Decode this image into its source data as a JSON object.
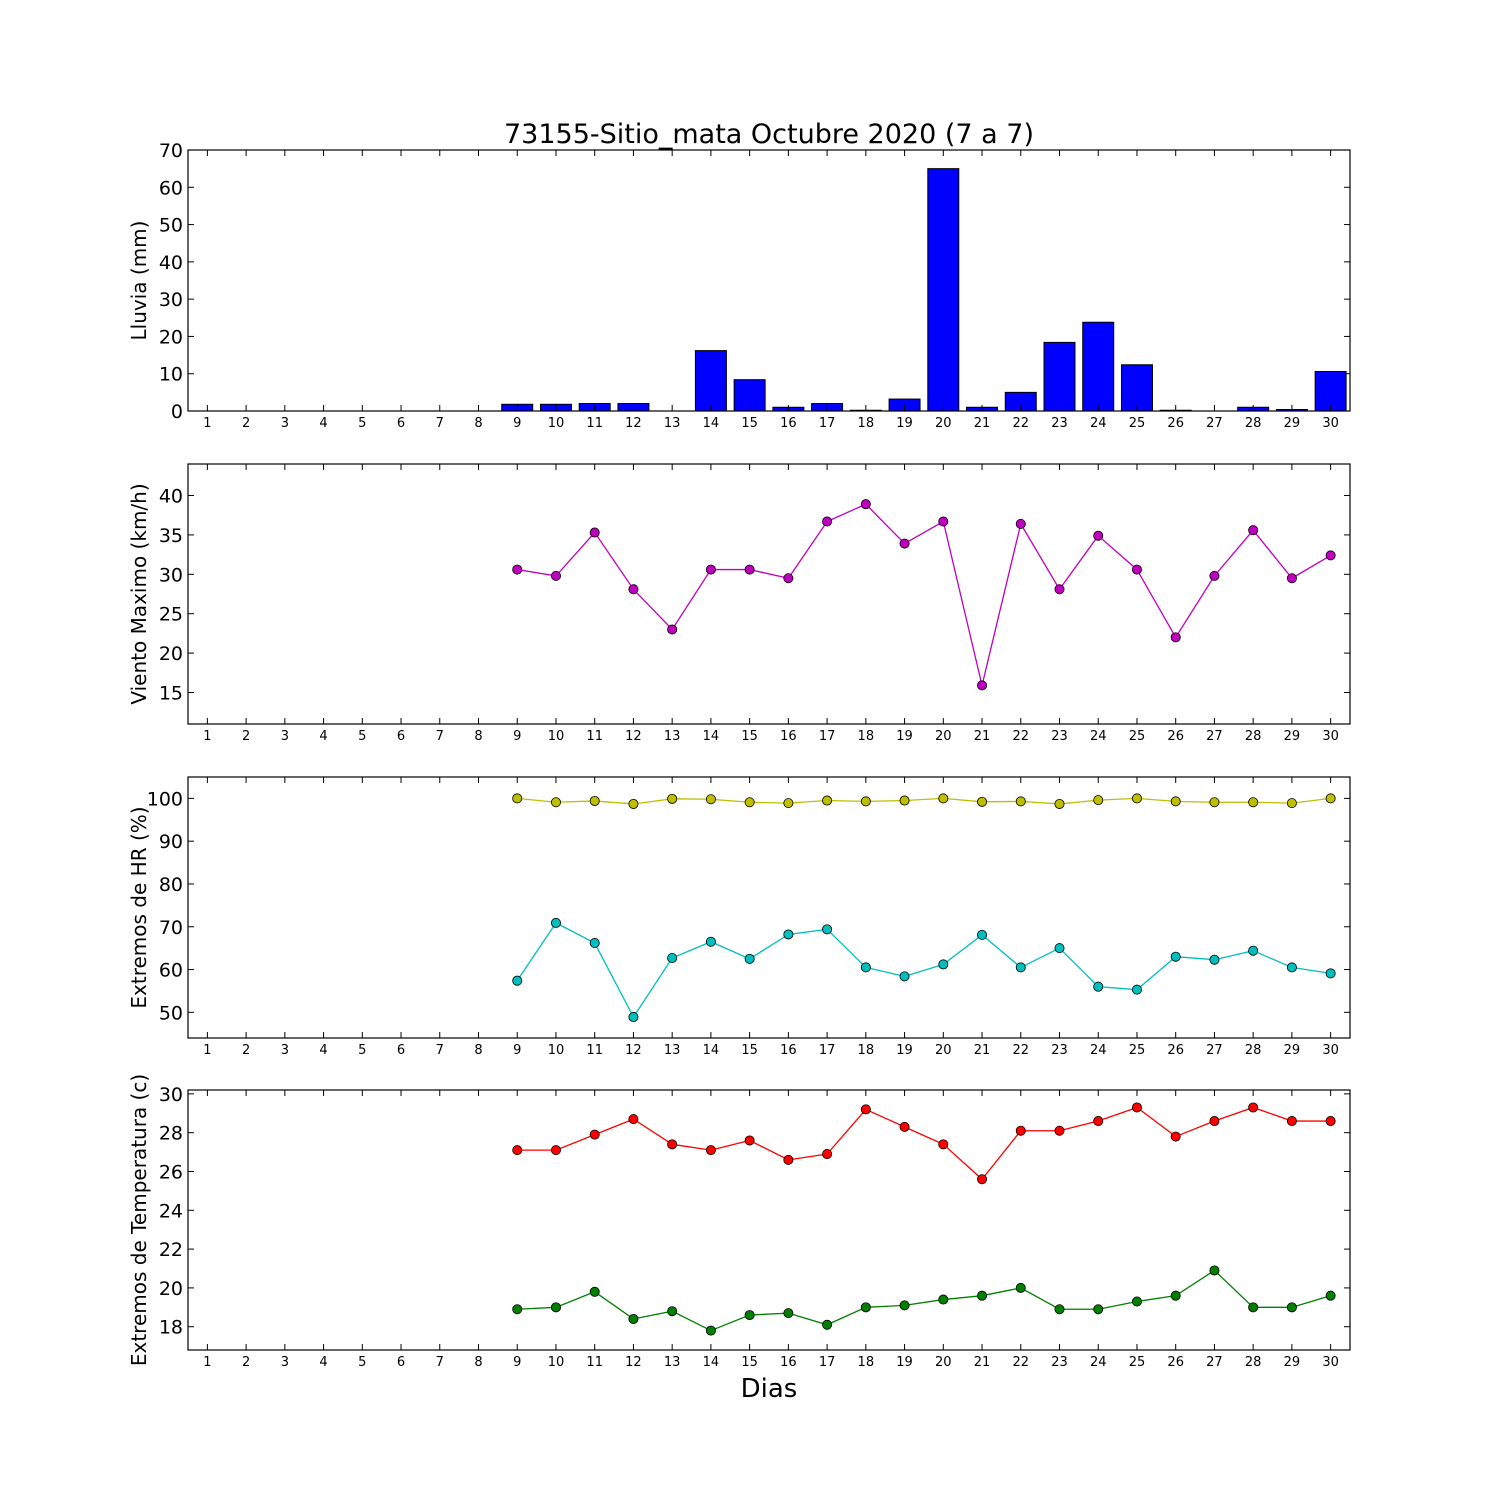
{
  "title": "73155-Sitio_mata Octubre 2020  (7 a 7)",
  "xlabel": "Dias",
  "days": [
    1,
    2,
    3,
    4,
    5,
    6,
    7,
    8,
    9,
    10,
    11,
    12,
    13,
    14,
    15,
    16,
    17,
    18,
    19,
    20,
    21,
    22,
    23,
    24,
    25,
    26,
    27,
    28,
    29,
    30
  ],
  "chart_data": [
    {
      "type": "bar",
      "ylabel": "Lluvia (mm)",
      "ylim": [
        0,
        70
      ],
      "yticks": [
        0,
        10,
        20,
        30,
        40,
        50,
        60,
        70
      ],
      "xlim": [
        0.5,
        30.5
      ],
      "color": "#0000ff",
      "categories": [
        9,
        10,
        11,
        12,
        13,
        14,
        15,
        16,
        17,
        18,
        19,
        20,
        21,
        22,
        23,
        24,
        25,
        26,
        27,
        28,
        29,
        30
      ],
      "values": [
        1.8,
        1.8,
        2.0,
        2.0,
        0,
        16.2,
        8.4,
        1.0,
        2.0,
        0.2,
        3.2,
        65.0,
        1.0,
        5.0,
        18.4,
        23.8,
        12.4,
        0.2,
        0,
        1.0,
        0.4,
        10.6
      ]
    },
    {
      "type": "line",
      "ylabel": "Viento Maximo (km/h)",
      "ylim": [
        11,
        44
      ],
      "yticks": [
        15,
        20,
        25,
        30,
        35,
        40
      ],
      "xlim": [
        0.5,
        30.5
      ],
      "series": [
        {
          "color": "#bf00bf",
          "x": [
            9,
            10,
            11,
            12,
            13,
            14,
            15,
            16,
            17,
            18,
            19,
            20,
            21,
            22,
            23,
            24,
            25,
            26,
            27,
            28,
            29,
            30
          ],
          "values": [
            30.6,
            29.8,
            35.3,
            28.1,
            23.0,
            30.6,
            30.6,
            29.5,
            36.7,
            38.9,
            33.9,
            36.7,
            15.9,
            36.4,
            28.1,
            34.9,
            30.6,
            22.0,
            29.8,
            35.6,
            29.5,
            32.4
          ]
        }
      ]
    },
    {
      "type": "line",
      "ylabel": "Extremos de HR (%)",
      "ylim": [
        44,
        105
      ],
      "yticks": [
        50,
        60,
        70,
        80,
        90,
        100
      ],
      "xlim": [
        0.5,
        30.5
      ],
      "series": [
        {
          "color": "#bfbf00",
          "x": [
            9,
            10,
            11,
            12,
            13,
            14,
            15,
            16,
            17,
            18,
            19,
            20,
            21,
            22,
            23,
            24,
            25,
            26,
            27,
            28,
            29,
            30
          ],
          "values": [
            100,
            99.1,
            99.4,
            98.7,
            99.9,
            99.8,
            99.1,
            98.9,
            99.5,
            99.3,
            99.5,
            100,
            99.2,
            99.3,
            98.7,
            99.6,
            100,
            99.3,
            99.1,
            99.1,
            98.9,
            100
          ]
        },
        {
          "color": "#00bfbf",
          "x": [
            9,
            10,
            11,
            12,
            13,
            14,
            15,
            16,
            17,
            18,
            19,
            20,
            21,
            22,
            23,
            24,
            25,
            26,
            27,
            28,
            29,
            30
          ],
          "values": [
            57.4,
            70.9,
            66.2,
            48.9,
            62.7,
            66.5,
            62.5,
            68.2,
            69.4,
            60.5,
            58.4,
            61.2,
            68.1,
            60.5,
            65.0,
            56.0,
            55.3,
            63.0,
            62.3,
            64.4,
            60.5,
            59.1
          ]
        }
      ]
    },
    {
      "type": "line",
      "ylabel": "Extremos de Temperatura (c)",
      "ylim": [
        16.8,
        30.2
      ],
      "yticks": [
        18,
        20,
        22,
        24,
        26,
        28,
        30
      ],
      "xlim": [
        0.5,
        30.5
      ],
      "series": [
        {
          "color": "#ff0000",
          "x": [
            9,
            10,
            11,
            12,
            13,
            14,
            15,
            16,
            17,
            18,
            19,
            20,
            21,
            22,
            23,
            24,
            25,
            26,
            27,
            28,
            29,
            30
          ],
          "values": [
            27.1,
            27.1,
            27.9,
            28.7,
            27.4,
            27.1,
            27.6,
            26.6,
            26.9,
            29.2,
            28.3,
            27.4,
            25.6,
            28.1,
            28.1,
            28.6,
            29.3,
            27.8,
            28.6,
            29.3,
            28.6,
            28.6
          ]
        },
        {
          "color": "#007f00",
          "x": [
            9,
            10,
            11,
            12,
            13,
            14,
            15,
            16,
            17,
            18,
            19,
            20,
            21,
            22,
            23,
            24,
            25,
            26,
            27,
            28,
            29,
            30
          ],
          "values": [
            18.9,
            19.0,
            19.8,
            18.4,
            18.8,
            17.8,
            18.6,
            18.7,
            18.1,
            19.0,
            19.1,
            19.4,
            19.6,
            20.0,
            18.9,
            18.9,
            19.3,
            19.6,
            20.9,
            19.0,
            19.0,
            19.6
          ]
        }
      ]
    }
  ]
}
